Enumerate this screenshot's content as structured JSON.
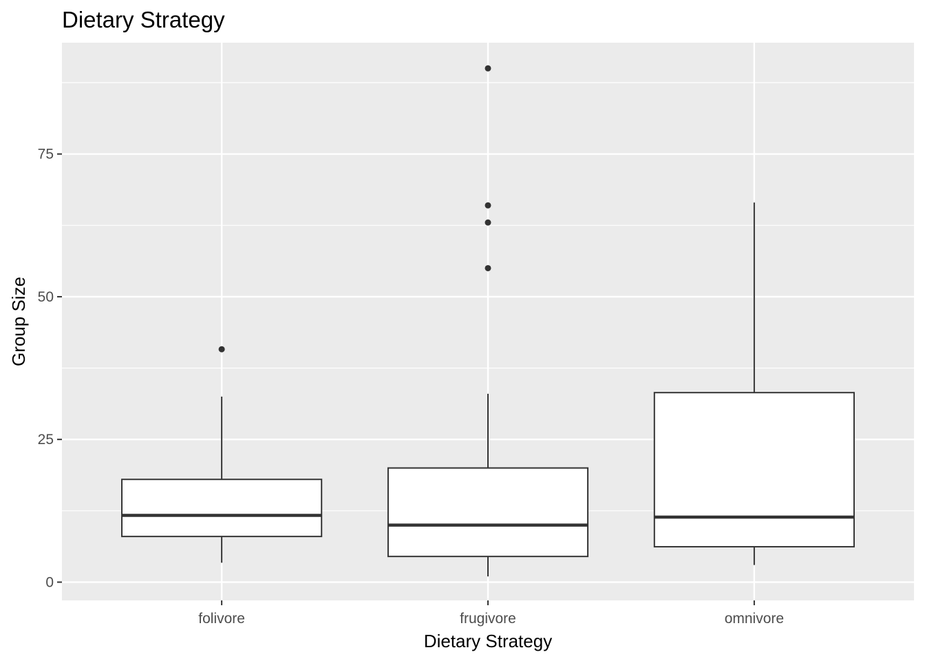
{
  "chart_data": {
    "type": "boxplot",
    "title": "Dietary Strategy",
    "xlabel": "Dietary Strategy",
    "ylabel": "Group Size",
    "categories": [
      "folivore",
      "frugivore",
      "omnivore"
    ],
    "ylim": [
      -3.2,
      94.5
    ],
    "y_ticks": [
      0,
      25,
      50,
      75
    ],
    "y_tick_labels": [
      "0",
      "25",
      "50",
      "75"
    ],
    "grid": true,
    "colors": {
      "panel": "#ebebeb",
      "grid": "#ffffff",
      "box_fill": "#ffffff",
      "box_stroke": "#333333",
      "outlier": "#333333",
      "tick": "#333333",
      "tick_label": "#4d4d4d"
    },
    "boxes": [
      {
        "category": "folivore",
        "whisker_low": 3.4,
        "q1": 8.0,
        "median": 11.7,
        "q3": 18.0,
        "whisker_high": 32.5,
        "outliers": [
          40.8
        ]
      },
      {
        "category": "frugivore",
        "whisker_low": 1.0,
        "q1": 4.5,
        "median": 10.0,
        "q3": 20.0,
        "whisker_high": 33.0,
        "outliers": [
          90.0,
          66.0,
          63.0,
          55.0
        ]
      },
      {
        "category": "omnivore",
        "whisker_low": 3.0,
        "q1": 6.2,
        "median": 11.4,
        "q3": 33.2,
        "whisker_high": 66.5,
        "outliers": []
      }
    ]
  }
}
